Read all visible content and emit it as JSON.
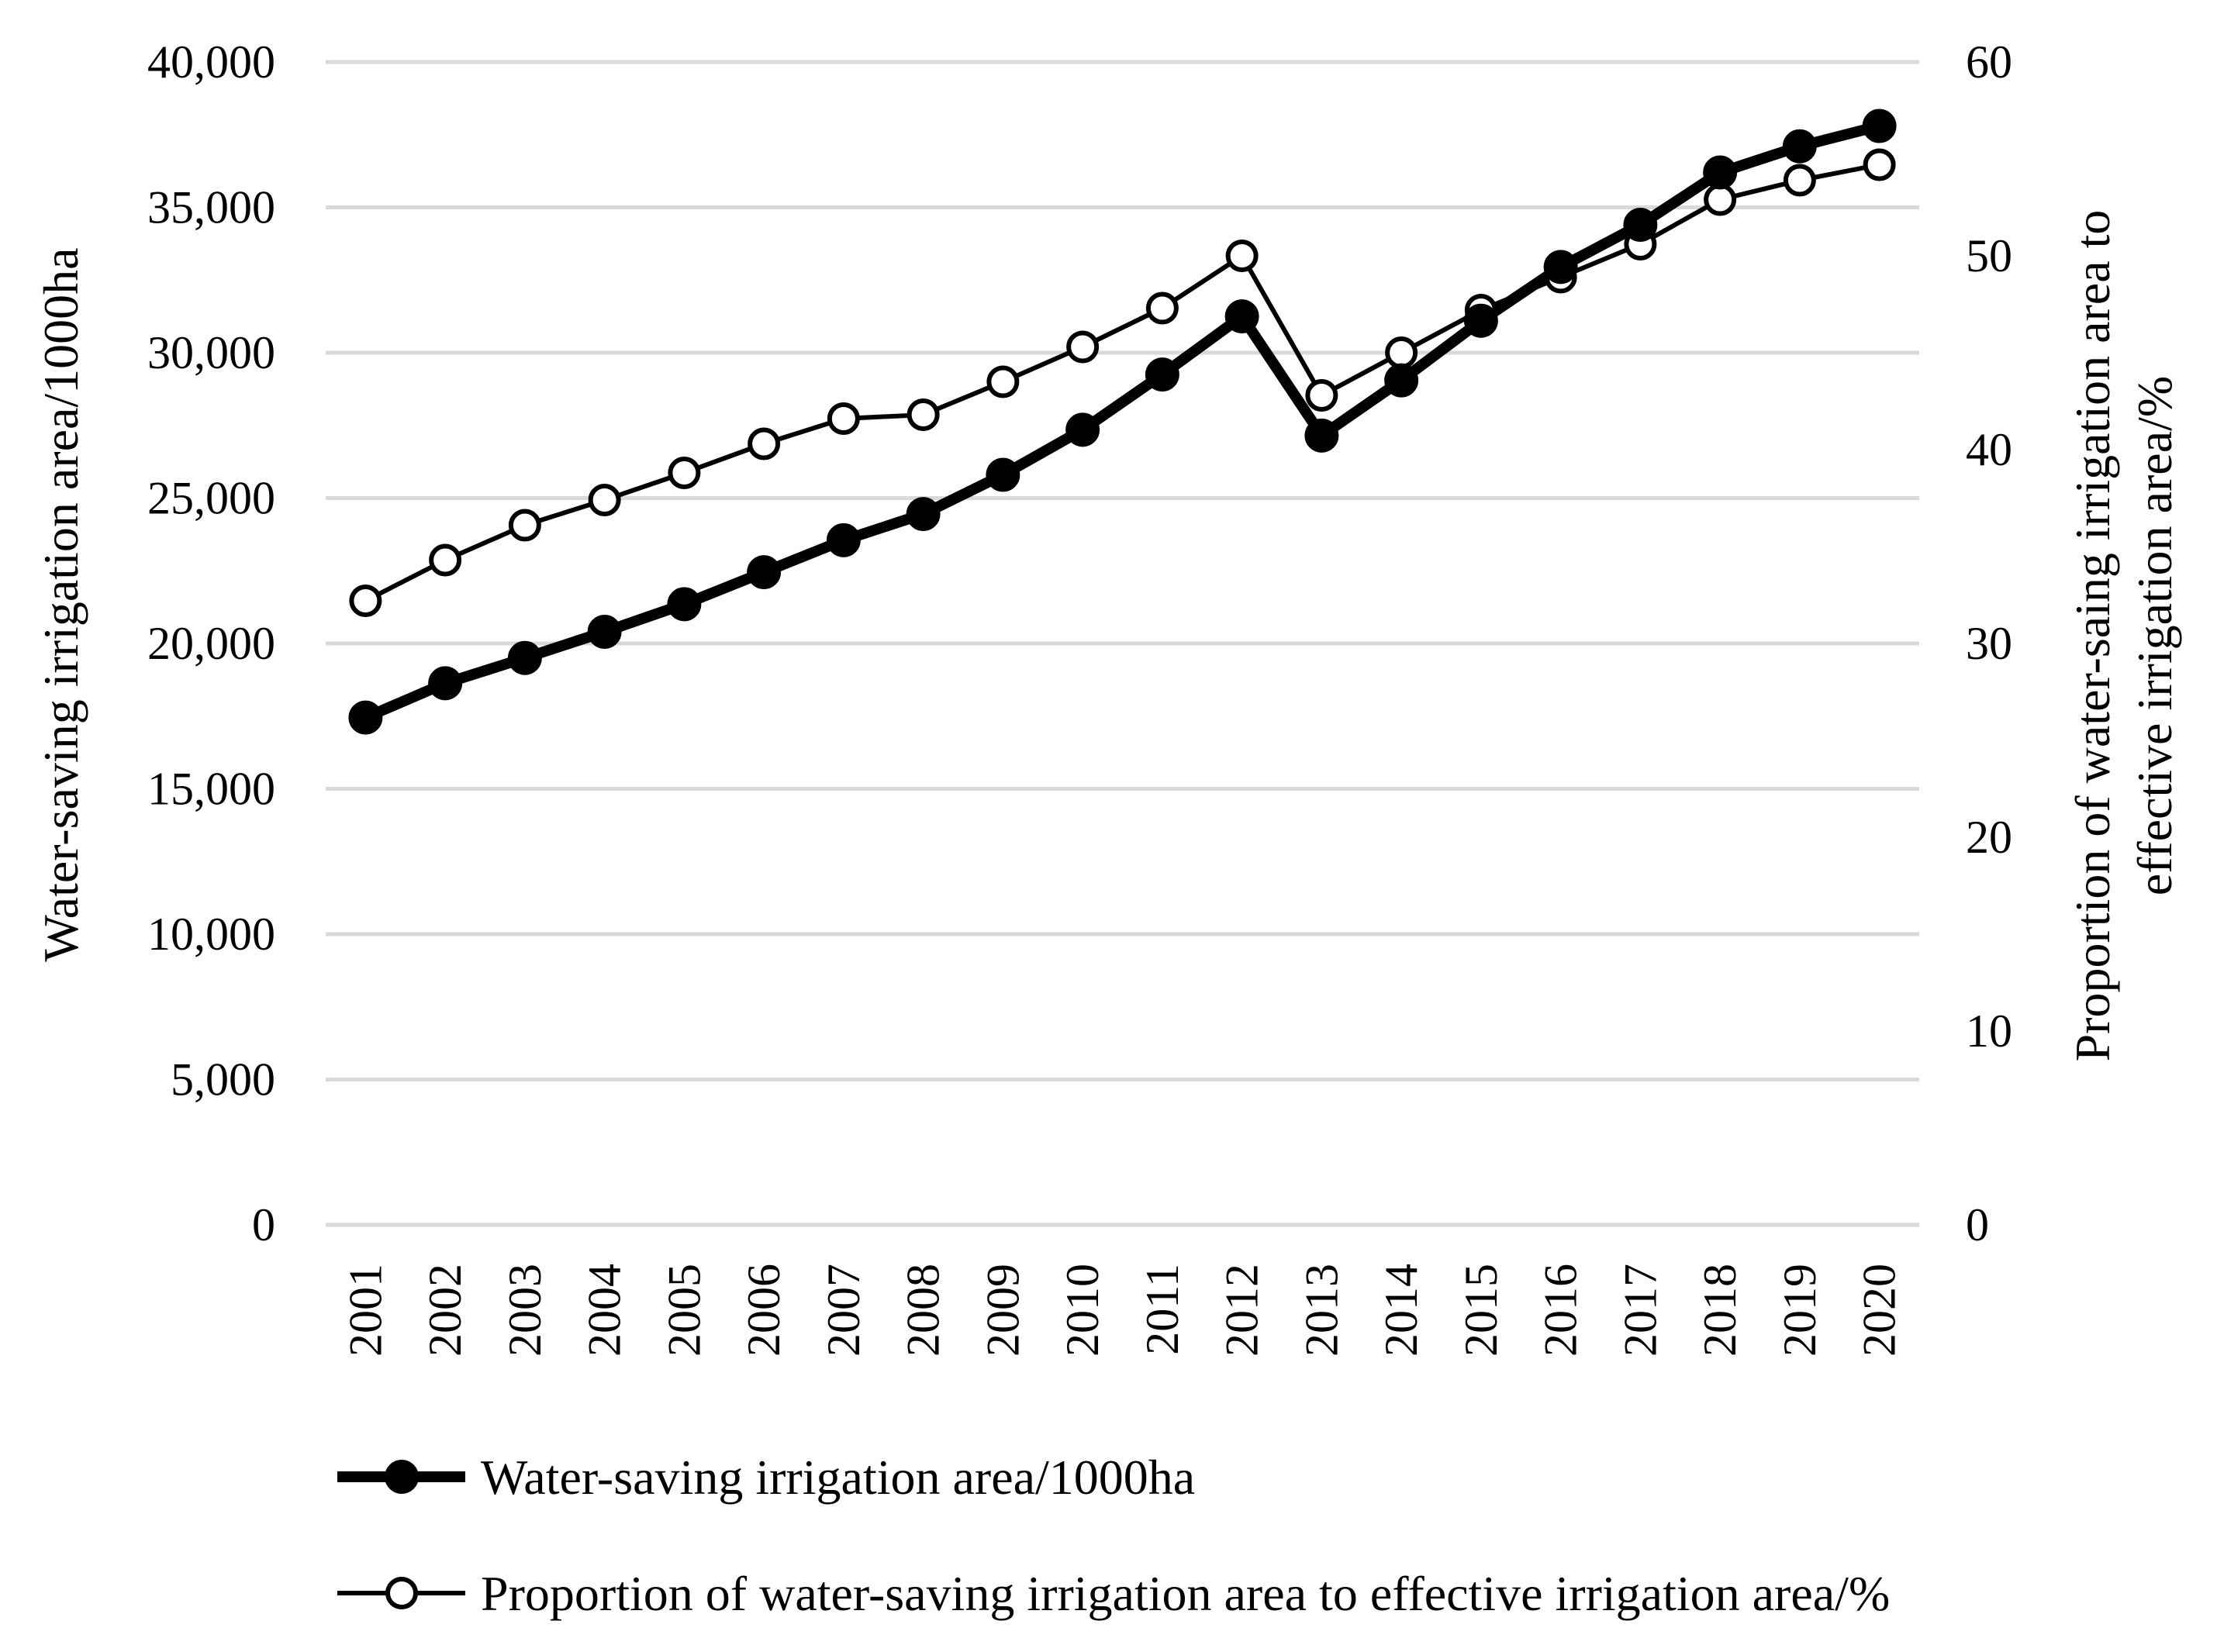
{
  "chart_data": {
    "type": "line",
    "title": "",
    "categories": [
      "2001",
      "2002",
      "2003",
      "2004",
      "2005",
      "2006",
      "2007",
      "2008",
      "2009",
      "2010",
      "2011",
      "2012",
      "2013",
      "2014",
      "2015",
      "2016",
      "2017",
      "2018",
      "2019",
      "2020"
    ],
    "series": [
      {
        "name": "Water-saving irrigation area/1000ha",
        "axis": "left",
        "marker": "filled-circle",
        "line": "thick",
        "values": [
          17450,
          18630,
          19500,
          20400,
          21350,
          22450,
          23550,
          24450,
          25800,
          27350,
          29250,
          31250,
          27150,
          29050,
          31100,
          32950,
          34400,
          36200,
          37100,
          37800
        ]
      },
      {
        "name": "Proportion of water-saving irrigation area to effective irrigation area/%",
        "axis": "right",
        "marker": "open-circle",
        "line": "thin",
        "values": [
          32.2,
          34.3,
          36.1,
          37.4,
          38.8,
          40.3,
          41.6,
          41.8,
          43.5,
          45.3,
          47.3,
          50.0,
          42.8,
          45.0,
          47.2,
          48.9,
          50.6,
          52.9,
          53.9,
          54.7
        ]
      }
    ],
    "left_axis": {
      "label": "Water-saving irrigation area/1000ha",
      "ylim": [
        0,
        40000
      ],
      "ticks": [
        "0",
        "5,000",
        "10,000",
        "15,000",
        "20,000",
        "25,000",
        "30,000",
        "35,000",
        "40,000"
      ]
    },
    "right_axis": {
      "label_line1": "Proportion of water-saing irrigation area to",
      "label_line2": "effective irrigation area/%",
      "ylim": [
        0,
        60
      ],
      "ticks": [
        "0",
        "10",
        "20",
        "30",
        "40",
        "50",
        "60"
      ]
    },
    "xlabel": "",
    "grid": true,
    "legend_position": "bottom",
    "colors": {
      "line": "#000000",
      "grid": "#d9d9d9",
      "background": "#ffffff"
    }
  }
}
